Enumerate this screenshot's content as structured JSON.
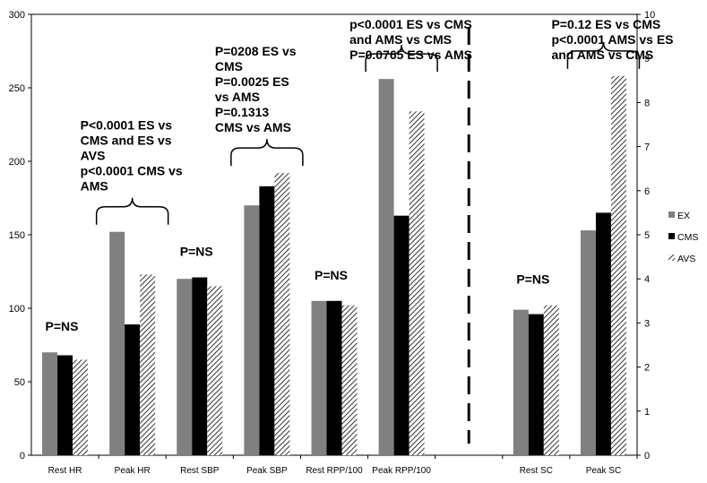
{
  "chart_data": {
    "type": "bar",
    "categories": [
      "Rest HR",
      "Peak HR",
      "Rest SBP",
      "Peak SBP",
      "Rest RPP/100",
      "Peak RPP/100",
      "",
      "Rest SC",
      "Peak SC"
    ],
    "series": [
      {
        "name": "EX",
        "values": [
          70,
          152,
          120,
          170,
          105,
          256,
          null,
          3.3,
          5.1
        ],
        "color": "#808080",
        "pattern": "solid"
      },
      {
        "name": "CMS",
        "values": [
          68,
          89,
          121,
          183,
          105,
          163,
          null,
          3.2,
          5.5
        ],
        "color": "#000000",
        "pattern": "solid"
      },
      {
        "name": "AVS",
        "values": [
          65,
          123,
          115,
          192,
          102,
          234,
          null,
          3.4,
          8.6
        ],
        "color": "#000000",
        "pattern": "diagonal-hatch"
      }
    ],
    "left_axis": {
      "ylim": [
        0,
        300
      ],
      "ticks": [
        "0",
        "50",
        "100",
        "150",
        "200",
        "250",
        "300"
      ]
    },
    "right_axis": {
      "ylim": [
        0,
        10
      ],
      "ticks": [
        "0",
        "1",
        "2",
        "3",
        "4",
        "5",
        "6",
        "7",
        "8",
        "9",
        "10"
      ],
      "applies_to": [
        "Rest SC",
        "Peak SC"
      ]
    },
    "legend": {
      "placement": "right",
      "entries": [
        "EX",
        "CMS",
        "AVS"
      ]
    },
    "annotations": [
      {
        "group": "Rest HR",
        "lines": [
          "P=NS"
        ]
      },
      {
        "group": "Peak HR",
        "lines": [
          "P<0.0001 ES vs",
          "CMS and ES vs",
          "AVS",
          "p<0.0001 CMS vs",
          "AMS"
        ],
        "bracket": true
      },
      {
        "group": "Rest SBP",
        "lines": [
          "P=NS"
        ]
      },
      {
        "group": "Peak SBP",
        "lines": [
          "P=0208  ES vs",
          "CMS",
          "P=0.0025 ES",
          "vs AMS",
          "P=0.1313",
          "CMS vs AMS"
        ],
        "bracket": true
      },
      {
        "group": "Rest RPP/100",
        "lines": [
          "P=NS"
        ]
      },
      {
        "group": "Peak RPP/100",
        "lines": [
          "p<0.0001 ES vs CMS",
          "and AMS vs CMS",
          "P=0.0765 ES vs AMS"
        ],
        "bracket": true
      },
      {
        "group": "Rest SC",
        "lines": [
          "P=NS"
        ]
      },
      {
        "group": "Peak SC",
        "lines": [
          "P=0.12 ES vs CMS",
          "p<0.0001 AMS vs ES",
          "and AMS vs CMS"
        ],
        "bracket": true
      }
    ],
    "grid": false,
    "title": "",
    "xlabel": "",
    "ylabel": ""
  }
}
